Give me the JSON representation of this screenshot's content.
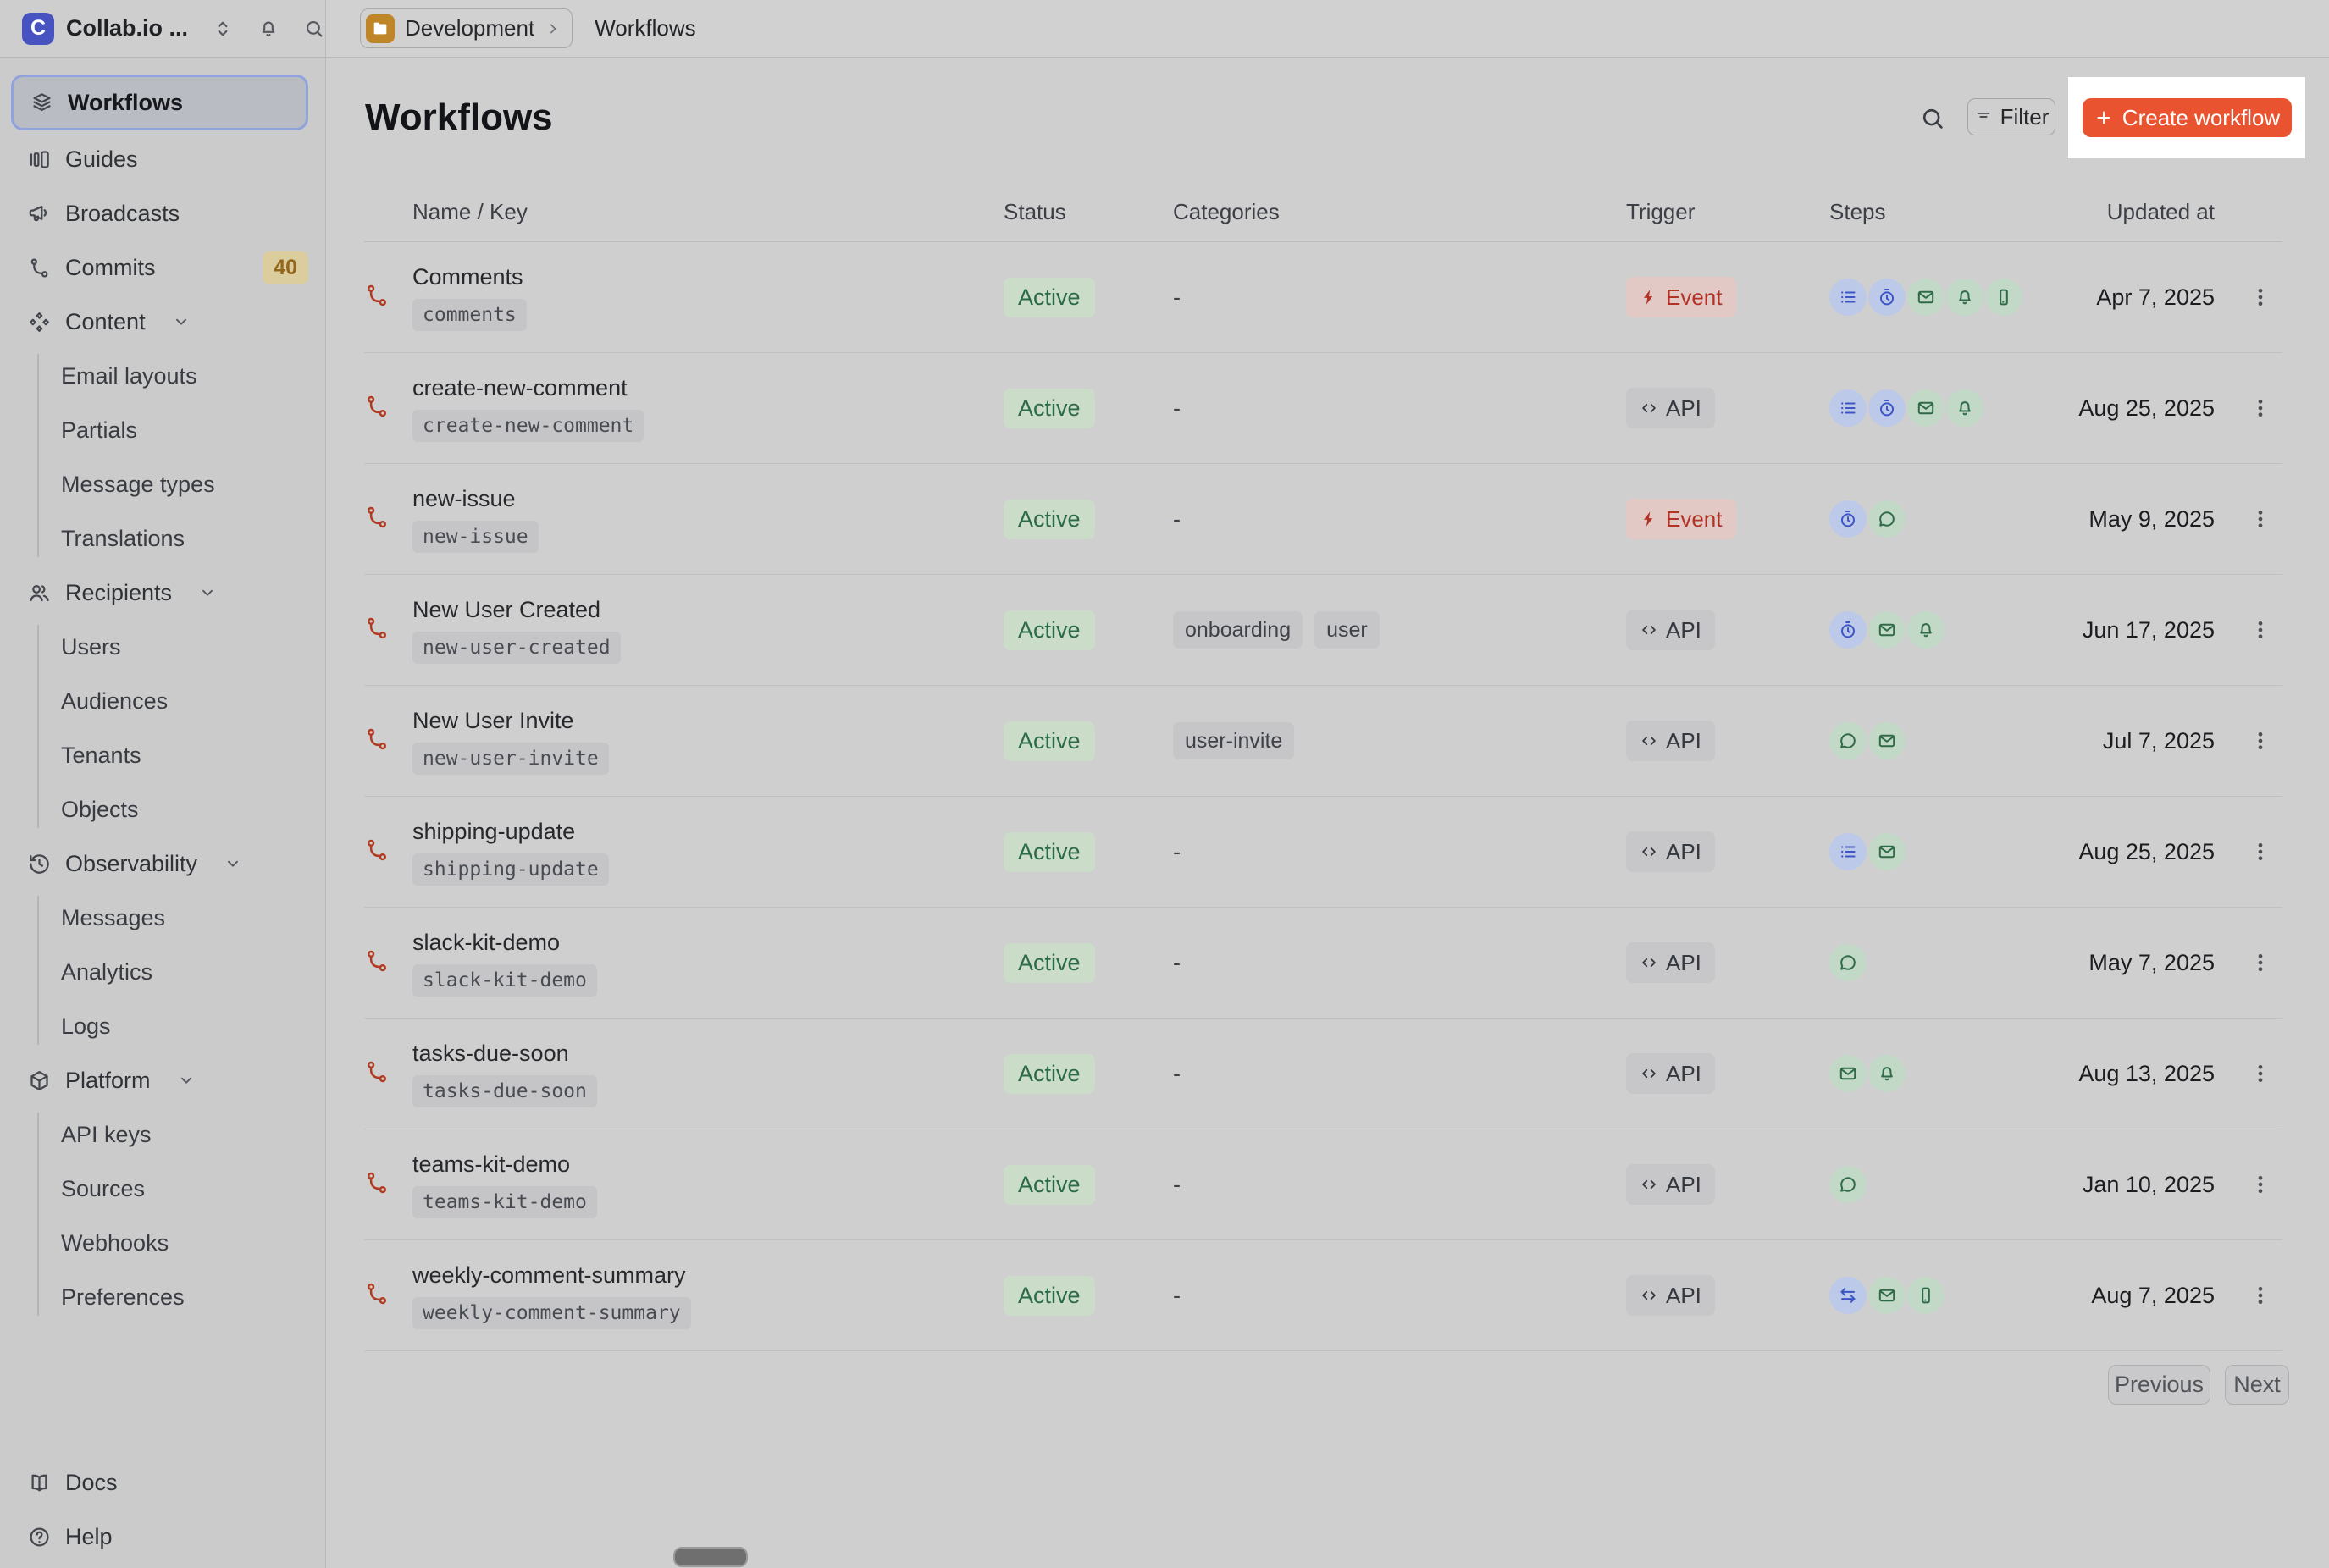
{
  "topbar": {
    "logo_letter": "C",
    "org_name": "Collab.io ...",
    "icons": [
      "selector",
      "bell",
      "search"
    ]
  },
  "breadcrumb": {
    "environment": "Development",
    "page": "Workflows"
  },
  "sidebar": {
    "items": [
      {
        "label": "Workflows",
        "icon": "layers",
        "selected": true
      },
      {
        "label": "Guides",
        "icon": "guides"
      },
      {
        "label": "Broadcasts",
        "icon": "megaphone"
      },
      {
        "label": "Commits",
        "icon": "branch",
        "badge": "40"
      },
      {
        "label": "Content",
        "icon": "shapes",
        "expandable": true,
        "children": [
          "Email layouts",
          "Partials",
          "Message types",
          "Translations"
        ]
      },
      {
        "label": "Recipients",
        "icon": "users",
        "expandable": true,
        "children": [
          "Users",
          "Audiences",
          "Tenants",
          "Objects"
        ]
      },
      {
        "label": "Observability",
        "icon": "history",
        "expandable": true,
        "children": [
          "Messages",
          "Analytics",
          "Logs"
        ]
      },
      {
        "label": "Platform",
        "icon": "box",
        "expandable": true,
        "children": [
          "API keys",
          "Sources",
          "Webhooks",
          "Preferences"
        ]
      }
    ],
    "footer_items": [
      {
        "label": "Docs",
        "icon": "book"
      },
      {
        "label": "Help",
        "icon": "help"
      }
    ]
  },
  "page": {
    "title": "Workflows",
    "filter_label": "Filter",
    "create_label": "Create workflow"
  },
  "table": {
    "columns": [
      "Name / Key",
      "Status",
      "Categories",
      "Trigger",
      "Steps",
      "Updated at"
    ],
    "empty_categories": "-",
    "trigger_labels": {
      "event": "Event",
      "api": "API"
    },
    "rows": [
      {
        "name": "Comments",
        "key": "comments",
        "status": "Active",
        "categories": [],
        "trigger": "event",
        "steps": [
          "batch",
          "delay",
          "email",
          "in_app",
          "push"
        ],
        "updated": "Apr 7, 2025"
      },
      {
        "name": "create-new-comment",
        "key": "create-new-comment",
        "status": "Active",
        "categories": [],
        "trigger": "api",
        "steps": [
          "batch",
          "delay",
          "email",
          "in_app"
        ],
        "updated": "Aug 25, 2025"
      },
      {
        "name": "new-issue",
        "key": "new-issue",
        "status": "Active",
        "categories": [],
        "trigger": "event",
        "steps": [
          "delay",
          "chat"
        ],
        "updated": "May 9, 2025"
      },
      {
        "name": "New User Created",
        "key": "new-user-created",
        "status": "Active",
        "categories": [
          "onboarding",
          "user"
        ],
        "trigger": "api",
        "steps": [
          "delay",
          "email",
          "in_app"
        ],
        "updated": "Jun 17, 2025"
      },
      {
        "name": "New User Invite",
        "key": "new-user-invite",
        "status": "Active",
        "categories": [
          "user-invite"
        ],
        "trigger": "api",
        "steps": [
          "chat",
          "email"
        ],
        "updated": "Jul 7, 2025"
      },
      {
        "name": "shipping-update",
        "key": "shipping-update",
        "status": "Active",
        "categories": [],
        "trigger": "api",
        "steps": [
          "batch",
          "email"
        ],
        "updated": "Aug 25, 2025"
      },
      {
        "name": "slack-kit-demo",
        "key": "slack-kit-demo",
        "status": "Active",
        "categories": [],
        "trigger": "api",
        "steps": [
          "chat"
        ],
        "updated": "May 7, 2025"
      },
      {
        "name": "tasks-due-soon",
        "key": "tasks-due-soon",
        "status": "Active",
        "categories": [],
        "trigger": "api",
        "steps": [
          "email",
          "in_app"
        ],
        "updated": "Aug 13, 2025"
      },
      {
        "name": "teams-kit-demo",
        "key": "teams-kit-demo",
        "status": "Active",
        "categories": [],
        "trigger": "api",
        "steps": [
          "chat"
        ],
        "updated": "Jan 10, 2025"
      },
      {
        "name": "weekly-comment-summary",
        "key": "weekly-comment-summary",
        "status": "Active",
        "categories": [],
        "trigger": "api",
        "steps": [
          "fetch",
          "email",
          "push"
        ],
        "updated": "Aug 7, 2025"
      }
    ]
  },
  "pagination": {
    "previous": "Previous",
    "next": "Next"
  },
  "colors": {
    "accent_create": "#e95330",
    "spotlight": "#ffffff",
    "status_active_text": "#2a6a45",
    "status_active_bg": "#cbdcc9",
    "trigger_event_text": "#b23226",
    "trigger_event_bg": "#e3c9c5",
    "step_blue": "#3d56c5",
    "step_green": "#2f6b47",
    "workflow_icon": "#b13a22",
    "selected_ring": "#91a3dc",
    "env_badge": "#be8628",
    "logo_bg": "#4753c0",
    "commits_badge_bg": "#dccd9e",
    "commits_badge_text": "#93671b"
  }
}
